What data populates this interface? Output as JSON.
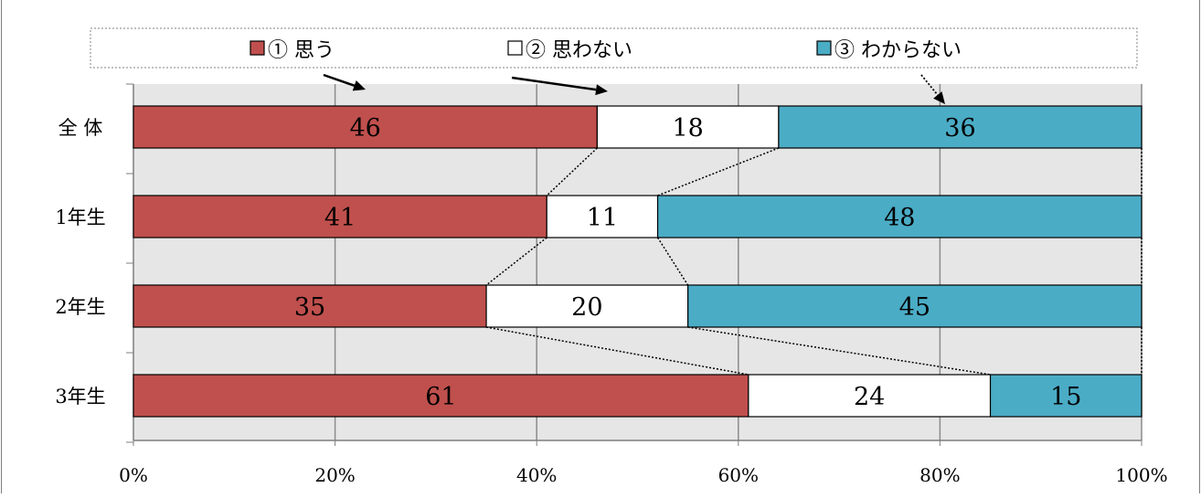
{
  "chart_data": {
    "type": "bar",
    "orientation": "horizontal",
    "stacked": "percent",
    "categories": [
      "全 体",
      "1年生",
      "2年生",
      "3年生"
    ],
    "series": [
      {
        "name": "① 思う",
        "values": [
          46,
          41,
          35,
          61
        ],
        "color": "#C0504D"
      },
      {
        "name": "② 思わない",
        "values": [
          18,
          11,
          20,
          24
        ],
        "color": "#FFFFFF"
      },
      {
        "name": "③ わからない",
        "values": [
          36,
          48,
          45,
          15
        ],
        "color": "#4BACC6"
      }
    ],
    "xlim": [
      0,
      100
    ],
    "x_ticks": [
      "0%",
      "20%",
      "40%",
      "60%",
      "80%",
      "100%"
    ],
    "grid": true,
    "legend": "top",
    "plot_background": "#E6E6E6",
    "series_connector_lines": true
  }
}
